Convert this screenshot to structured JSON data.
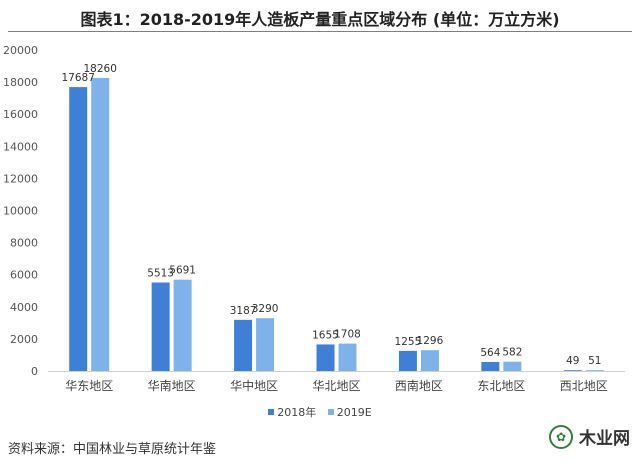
{
  "chart_data": {
    "type": "bar",
    "title": "图表1：2018-2019年人造板产量重点区域分布 (单位：万立方米)",
    "categories": [
      "华东地区",
      "华南地区",
      "华中地区",
      "华北地区",
      "西南地区",
      "东北地区",
      "西北地区"
    ],
    "series": [
      {
        "name": "2018年",
        "values": [
          17687,
          5513,
          3187,
          1655,
          1255,
          564,
          49
        ],
        "color": "#3f7fd6"
      },
      {
        "name": "2019E",
        "values": [
          18260,
          5691,
          3290,
          1708,
          1296,
          582,
          51
        ],
        "color": "#7fb2e8"
      }
    ],
    "yticks": [
      0,
      2000,
      4000,
      6000,
      8000,
      10000,
      12000,
      14000,
      16000,
      18000,
      20000
    ],
    "ylim": [
      0,
      20000
    ],
    "grid": false,
    "legend": "bottom"
  },
  "source": "资料来源：中国林业与草原统计年鉴",
  "logo": {
    "text": "木业网",
    "icon": "wood-logo-icon"
  }
}
